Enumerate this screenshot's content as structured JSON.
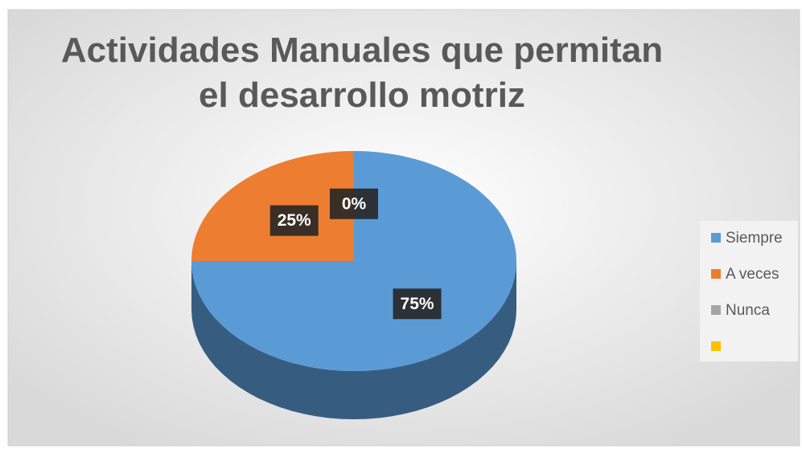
{
  "chart_data": {
    "type": "pie",
    "title": "Actividades  Manuales que permitan el desarrollo motriz",
    "categories": [
      "Siempre",
      "A veces",
      "Nunca",
      null
    ],
    "values": [
      75,
      25,
      0,
      null
    ],
    "value_labels": [
      "75%",
      "25%",
      "0%",
      null
    ],
    "colors": [
      "#5b9bd5",
      "#ed7d31",
      "#a5a5a5",
      "#ffc000"
    ],
    "legend": "right"
  }
}
